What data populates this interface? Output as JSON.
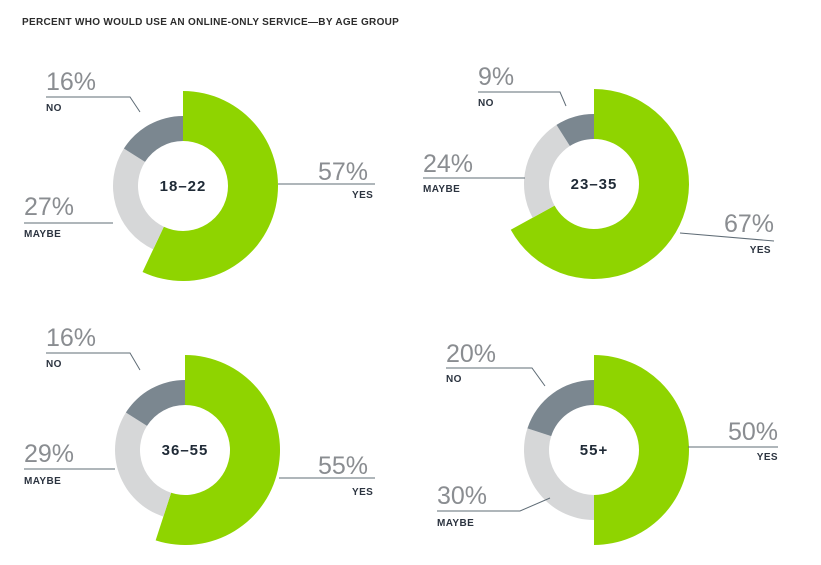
{
  "title": "PERCENT WHO WOULD USE AN ONLINE-ONLY SERVICE—BY AGE GROUP",
  "colors": {
    "yes": "#8fd400",
    "maybe": "#d6d7d8",
    "no": "#7b8790"
  },
  "chart_data": [
    {
      "type": "pie",
      "center_label": "18–22",
      "slices": [
        {
          "name": "YES",
          "value": 57,
          "value_label": "57%"
        },
        {
          "name": "MAYBE",
          "value": 27,
          "value_label": "27%"
        },
        {
          "name": "NO",
          "value": 16,
          "value_label": "16%"
        }
      ]
    },
    {
      "type": "pie",
      "center_label": "23–35",
      "slices": [
        {
          "name": "YES",
          "value": 67,
          "value_label": "67%"
        },
        {
          "name": "MAYBE",
          "value": 24,
          "value_label": "24%"
        },
        {
          "name": "NO",
          "value": 9,
          "value_label": "9%"
        }
      ]
    },
    {
      "type": "pie",
      "center_label": "36–55",
      "slices": [
        {
          "name": "YES",
          "value": 55,
          "value_label": "55%"
        },
        {
          "name": "MAYBE",
          "value": 29,
          "value_label": "29%"
        },
        {
          "name": "NO",
          "value": 16,
          "value_label": "16%"
        }
      ]
    },
    {
      "type": "pie",
      "center_label": "55+",
      "slices": [
        {
          "name": "YES",
          "value": 50,
          "value_label": "50%"
        },
        {
          "name": "MAYBE",
          "value": 30,
          "value_label": "30%"
        },
        {
          "name": "NO",
          "value": 20,
          "value_label": "20%"
        }
      ]
    }
  ]
}
